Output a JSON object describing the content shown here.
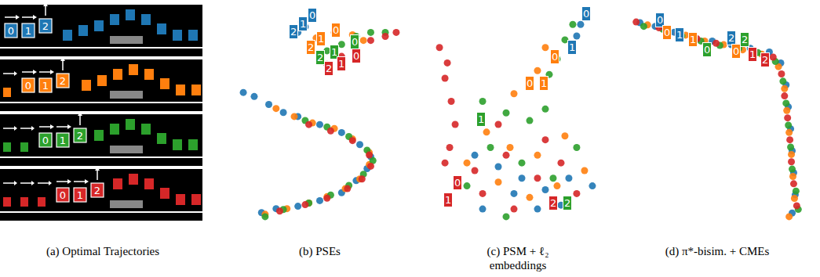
{
  "diagram": {
    "caption": "(a) Optimal Trajectories",
    "rows": [
      {
        "color": "#1f77b4",
        "labels": [
          "0",
          "1",
          "2"
        ]
      },
      {
        "color": "#ff7f0e",
        "labels": [
          "0",
          "1",
          "2"
        ]
      },
      {
        "color": "#2ca02c",
        "labels": [
          "0",
          "1",
          "2"
        ]
      },
      {
        "color": "#d62728",
        "labels": [
          "0",
          "1",
          "2"
        ]
      }
    ]
  },
  "chart_data": [
    {
      "type": "scatter",
      "title": "(b) PSEs",
      "grid": false,
      "tick_labels": false,
      "series": [
        {
          "color": "#1f77b4",
          "x": [
            95,
            100,
            90,
            15,
            30,
            50,
            70,
            90,
            120,
            150,
            175,
            190,
            185,
            170,
            150,
            120,
            90,
            60,
            40
          ],
          "y": [
            268,
            262,
            255,
            180,
            175,
            165,
            155,
            150,
            140,
            130,
            115,
            100,
            85,
            70,
            55,
            45,
            38,
            35,
            30
          ]
        },
        {
          "color": "#ff7f0e",
          "x": [
            115,
            140,
            165,
            180,
            60,
            85,
            110,
            140,
            165,
            188,
            188,
            175,
            155,
            130,
            105,
            75,
            45
          ],
          "y": [
            248,
            255,
            252,
            245,
            160,
            150,
            142,
            135,
            122,
            105,
            90,
            72,
            60,
            50,
            42,
            35,
            28
          ]
        },
        {
          "color": "#2ca02c",
          "x": [
            130,
            150,
            170,
            190,
            210,
            100,
            130,
            160,
            185,
            193,
            180,
            160,
            135,
            105,
            70,
            45
          ],
          "y": [
            232,
            240,
            250,
            255,
            255,
            145,
            137,
            125,
            108,
            95,
            78,
            64,
            52,
            42,
            34,
            25
          ]
        },
        {
          "color": "#d62728",
          "x": [
            130,
            150,
            170,
            190,
            210,
            225,
            105,
            135,
            165,
            188,
            190,
            178,
            158,
            130,
            100,
            65
          ],
          "y": [
            215,
            225,
            235,
            245,
            250,
            255,
            140,
            132,
            120,
            102,
            88,
            72,
            60,
            48,
            40,
            32
          ]
        }
      ],
      "annotations": [
        {
          "text": "0",
          "x": 110,
          "y": 276,
          "color": "#1f77b4"
        },
        {
          "text": "1",
          "x": 97,
          "y": 266,
          "color": "#1f77b4"
        },
        {
          "text": "2",
          "x": 84,
          "y": 256,
          "color": "#1f77b4"
        },
        {
          "text": "0",
          "x": 142,
          "y": 258,
          "color": "#ff7f0e"
        },
        {
          "text": "1",
          "x": 122,
          "y": 247,
          "color": "#ff7f0e"
        },
        {
          "text": "2",
          "x": 108,
          "y": 236,
          "color": "#ff7f0e"
        },
        {
          "text": "0",
          "x": 168,
          "y": 243,
          "color": "#2ca02c"
        },
        {
          "text": "1",
          "x": 140,
          "y": 230,
          "color": "#2ca02c"
        },
        {
          "text": "2",
          "x": 120,
          "y": 224,
          "color": "#2ca02c"
        },
        {
          "text": "0",
          "x": 170,
          "y": 226,
          "color": "#d62728"
        },
        {
          "text": "1",
          "x": 150,
          "y": 216,
          "color": "#d62728"
        },
        {
          "text": "2",
          "x": 132,
          "y": 210,
          "color": "#d62728"
        }
      ]
    },
    {
      "type": "scatter",
      "title": "(c) PSM + ℓ₂ embeddings",
      "grid": false,
      "tick_labels": false,
      "series": [
        {
          "color": "#1f77b4",
          "x": [
            205,
            200,
            70,
            100,
            130,
            160,
            190,
            80,
            120,
            150,
            180,
            220
          ],
          "y": [
            270,
            255,
            100,
            85,
            70,
            55,
            70,
            30,
            50,
            30,
            35,
            60
          ]
        },
        {
          "color": "#ff7f0e",
          "x": [
            160,
            150,
            120,
            85,
            115,
            150,
            185,
            60,
            100,
            140,
            175,
            210
          ],
          "y": [
            240,
            210,
            180,
            130,
            110,
            100,
            125,
            90,
            65,
            45,
            60,
            80
          ]
        },
        {
          "color": "#2ca02c",
          "x": [
            195,
            185,
            175,
            165,
            80,
            110,
            140,
            160,
            90,
            130,
            170,
            60,
            110,
            200
          ],
          "y": [
            270,
            250,
            225,
            205,
            170,
            155,
            145,
            160,
            110,
            90,
            70,
            60,
            20,
            110
          ]
        },
        {
          "color": "#d62728",
          "x": [
            25,
            35,
            32,
            40,
            45,
            38,
            32,
            70,
            110,
            150,
            180,
            200,
            120,
            80,
            160,
            100
          ],
          "y": [
            240,
            220,
            200,
            170,
            140,
            110,
            90,
            80,
            100,
            70,
            90,
            50,
            30,
            50,
            120,
            140
          ]
        }
      ],
      "annotations": [
        {
          "text": "0",
          "x": 212,
          "y": 284,
          "color": "#1f77b4"
        },
        {
          "text": "0",
          "x": 172,
          "y": 228,
          "color": "#ff7f0e"
        },
        {
          "text": "1",
          "x": 194,
          "y": 240,
          "color": "#1f77b4"
        },
        {
          "text": "0",
          "x": 140,
          "y": 193,
          "color": "#ff7f0e"
        },
        {
          "text": "1",
          "x": 158,
          "y": 193,
          "color": "#ff7f0e"
        },
        {
          "text": "1",
          "x": 78,
          "y": 147,
          "color": "#2ca02c"
        },
        {
          "text": "0",
          "x": 48,
          "y": 64,
          "color": "#d62728"
        },
        {
          "text": "1",
          "x": 36,
          "y": 42,
          "color": "#d62728"
        },
        {
          "text": "2",
          "x": 170,
          "y": 38,
          "color": "#d62728"
        },
        {
          "text": "2",
          "x": 188,
          "y": 38,
          "color": "#2ca02c"
        }
      ]
    },
    {
      "type": "scatter",
      "title": "(d) π*-bisim. + CMEs",
      "grid": false,
      "tick_labels": false,
      "series": [
        {
          "color": "#1f77b4",
          "x": [
            40,
            60,
            85,
            110,
            135,
            160,
            185,
            210,
            225,
            232,
            235,
            238,
            240,
            242,
            244,
            240
          ],
          "y": [
            275,
            270,
            262,
            255,
            250,
            245,
            240,
            235,
            220,
            190,
            160,
            130,
            100,
            70,
            40,
            15
          ]
        },
        {
          "color": "#ff7f0e",
          "x": [
            50,
            75,
            100,
            125,
            150,
            175,
            200,
            222,
            230,
            233,
            236,
            239,
            241,
            243,
            236
          ],
          "y": [
            272,
            265,
            258,
            250,
            245,
            238,
            232,
            215,
            185,
            155,
            125,
            95,
            65,
            35,
            10
          ]
        },
        {
          "color": "#2ca02c",
          "x": [
            45,
            70,
            95,
            120,
            145,
            170,
            195,
            218,
            228,
            232,
            235,
            238,
            240,
            245,
            248
          ],
          "y": [
            270,
            266,
            257,
            250,
            244,
            240,
            234,
            222,
            195,
            165,
            135,
            105,
            75,
            45,
            20
          ]
        },
        {
          "color": "#d62728",
          "x": [
            35,
            65,
            90,
            115,
            140,
            165,
            190,
            215,
            226,
            230,
            234,
            237,
            239,
            242,
            246
          ],
          "y": [
            276,
            268,
            260,
            253,
            247,
            242,
            236,
            228,
            205,
            175,
            145,
            115,
            85,
            55,
            25
          ]
        }
      ],
      "annotations": [
        {
          "text": "0",
          "x": 66,
          "y": 279,
          "color": "#1f77b4"
        },
        {
          "text": "0",
          "x": 76,
          "y": 262,
          "color": "#ff7f0e"
        },
        {
          "text": "1",
          "x": 92,
          "y": 258,
          "color": "#1f77b4"
        },
        {
          "text": "1",
          "x": 110,
          "y": 252,
          "color": "#ff7f0e"
        },
        {
          "text": "0",
          "x": 128,
          "y": 238,
          "color": "#2ca02c"
        },
        {
          "text": "2",
          "x": 160,
          "y": 254,
          "color": "#1f77b4"
        },
        {
          "text": "2",
          "x": 178,
          "y": 252,
          "color": "#2ca02c"
        },
        {
          "text": "0",
          "x": 166,
          "y": 236,
          "color": "#ff7f0e"
        },
        {
          "text": "1",
          "x": 188,
          "y": 232,
          "color": "#d62728"
        },
        {
          "text": "2",
          "x": 204,
          "y": 224,
          "color": "#d62728"
        }
      ]
    }
  ]
}
